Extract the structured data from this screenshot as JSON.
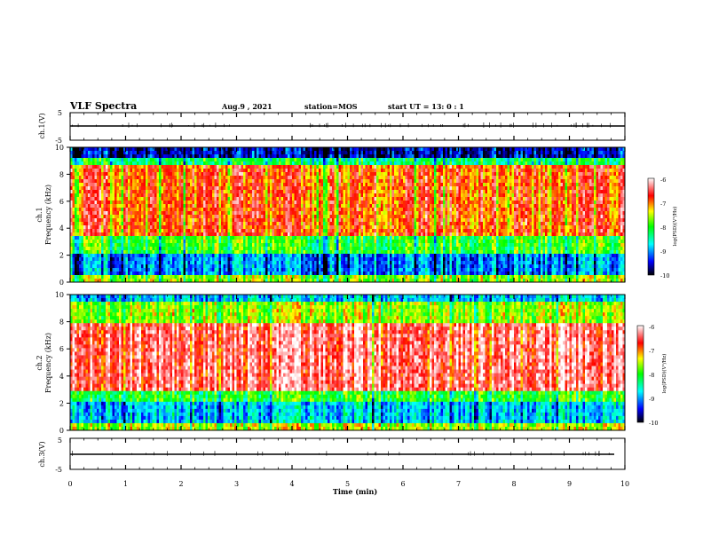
{
  "header": {
    "title": "VLF Spectra",
    "date": "Aug.9  , 2021",
    "station": "station=MOS",
    "start_ut": "start  UT  =   13: 0  : 1"
  },
  "chart_data": [
    {
      "type": "line",
      "panel": "ch1-waveform",
      "ylabel": "ch.1(V)",
      "ytick_labels": [
        "5",
        "-5"
      ],
      "ylim": [
        -5,
        5
      ],
      "xlim": [
        0,
        10
      ],
      "note_value": 0
    },
    {
      "type": "heatmap",
      "panel": "ch1-spectrogram",
      "ylabel_lines": [
        "ch.1",
        "Frequency  (kHz)"
      ],
      "ytick_labels": [
        "0",
        "2",
        "4",
        "6",
        "8",
        "10"
      ],
      "ylim": [
        0,
        10
      ],
      "xlim": [
        0,
        10
      ],
      "colorbar": {
        "label": "log(PSD)(V²/Hz)",
        "tick_labels": [
          "-6",
          "-7",
          "-8",
          "-9",
          "-10"
        ],
        "range": [
          -10,
          -6
        ]
      },
      "intense_band_khz": [
        3.5,
        8.8
      ]
    },
    {
      "type": "heatmap",
      "panel": "ch2-spectrogram",
      "ylabel_lines": [
        "ch.2",
        "Frequency  (kHz)"
      ],
      "ytick_labels": [
        "0",
        "2",
        "4",
        "6",
        "8",
        "10"
      ],
      "ylim": [
        0,
        10
      ],
      "xlim": [
        0,
        10
      ],
      "colorbar": {
        "label": "log(PSD)(V²/Hz)",
        "tick_labels": [
          "-6",
          "-7",
          "-8",
          "-9",
          "-10"
        ],
        "range": [
          -10,
          -6
        ]
      },
      "intense_band_khz": [
        3.0,
        8.0
      ]
    },
    {
      "type": "line",
      "panel": "ch3-waveform",
      "ylabel": "ch.3(V)",
      "ytick_labels": [
        "5",
        "-5"
      ],
      "ylim": [
        -5,
        5
      ],
      "xlim": [
        0,
        10
      ],
      "note_value": 0
    }
  ],
  "xaxis": {
    "label": "Time  (min)",
    "tick_labels": [
      "0",
      "1",
      "2",
      "3",
      "4",
      "5",
      "6",
      "7",
      "8",
      "9",
      "10"
    ]
  },
  "colors": {
    "axis": "#000000",
    "scale": [
      "#000000",
      "#0000ff",
      "#00ffff",
      "#00ff00",
      "#ffff00",
      "#ff0000",
      "#ffffff"
    ]
  }
}
